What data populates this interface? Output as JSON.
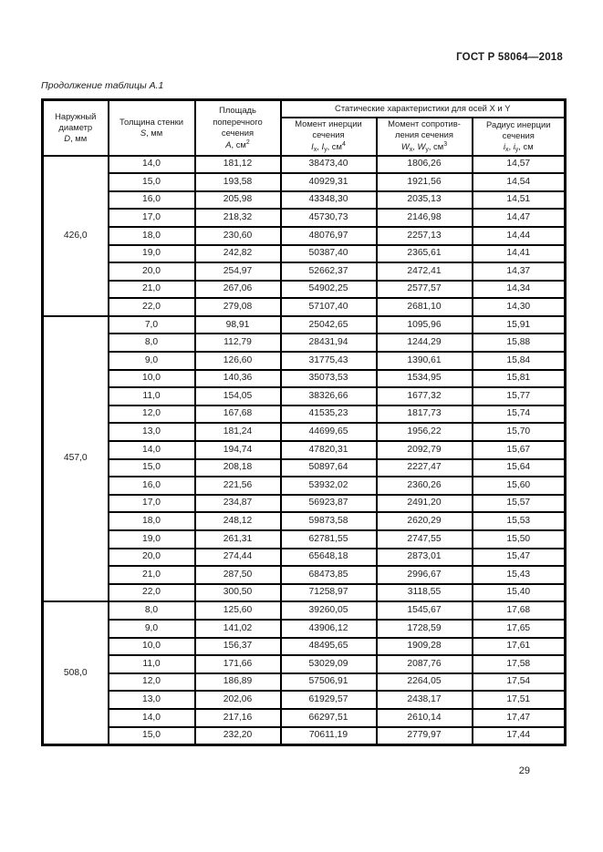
{
  "page": {
    "doc_number": "ГОСТ Р 58064—2018",
    "caption": "Продолжение таблицы А.1",
    "page_number": "29"
  },
  "table": {
    "header": {
      "col1": {
        "title": "Наружный диаметр",
        "var": "D",
        "unit": ", мм"
      },
      "col2": {
        "title": "Толщина стенки",
        "var": "S",
        "unit": ", мм"
      },
      "col3": {
        "title": "Площадь поперечного сечения",
        "var": "A",
        "unit": ", см",
        "sup": "2"
      },
      "span": "Статические характеристики  для осей X и Y",
      "col4": {
        "title": "Момент инерции сечения",
        "v1": "I",
        "s1": "x",
        "sep": ", ",
        "v2": "I",
        "s2": "y",
        "unit": ", см",
        "sup": "4"
      },
      "col5": {
        "title": "Момент сопротив-ления сечения",
        "v1": "W",
        "s1": "x",
        "sep": ", ",
        "v2": "W",
        "s2": "y",
        "unit": ", см",
        "sup": "3"
      },
      "col6": {
        "title": "Радиус инерции сечения",
        "v1": "i",
        "s1": "x",
        "sep": ", ",
        "v2": "i",
        "s2": "y",
        "unit": ", см"
      }
    },
    "groups": [
      {
        "diameter": "426,0",
        "rows": [
          [
            "14,0",
            "181,12",
            "38473,40",
            "1806,26",
            "14,57"
          ],
          [
            "15,0",
            "193,58",
            "40929,31",
            "1921,56",
            "14,54"
          ],
          [
            "16,0",
            "205,98",
            "43348,30",
            "2035,13",
            "14,51"
          ],
          [
            "17,0",
            "218,32",
            "45730,73",
            "2146,98",
            "14,47"
          ],
          [
            "18,0",
            "230,60",
            "48076,97",
            "2257,13",
            "14,44"
          ],
          [
            "19,0",
            "242,82",
            "50387,40",
            "2365,61",
            "14,41"
          ],
          [
            "20,0",
            "254,97",
            "52662,37",
            "2472,41",
            "14,37"
          ],
          [
            "21,0",
            "267,06",
            "54902,25",
            "2577,57",
            "14,34"
          ],
          [
            "22,0",
            "279,08",
            "57107,40",
            "2681,10",
            "14,30"
          ]
        ]
      },
      {
        "diameter": "457,0",
        "rows": [
          [
            "7,0",
            "98,91",
            "25042,65",
            "1095,96",
            "15,91"
          ],
          [
            "8,0",
            "112,79",
            "28431,94",
            "1244,29",
            "15,88"
          ],
          [
            "9,0",
            "126,60",
            "31775,43",
            "1390,61",
            "15,84"
          ],
          [
            "10,0",
            "140,36",
            "35073,53",
            "1534,95",
            "15,81"
          ],
          [
            "11,0",
            "154,05",
            "38326,66",
            "1677,32",
            "15,77"
          ],
          [
            "12,0",
            "167,68",
            "41535,23",
            "1817,73",
            "15,74"
          ],
          [
            "13,0",
            "181,24",
            "44699,65",
            "1956,22",
            "15,70"
          ],
          [
            "14,0",
            "194,74",
            "47820,31",
            "2092,79",
            "15,67"
          ],
          [
            "15,0",
            "208,18",
            "50897,64",
            "2227,47",
            "15,64"
          ],
          [
            "16,0",
            "221,56",
            "53932,02",
            "2360,26",
            "15,60"
          ],
          [
            "17,0",
            "234,87",
            "56923,87",
            "2491,20",
            "15,57"
          ],
          [
            "18,0",
            "248,12",
            "59873,58",
            "2620,29",
            "15,53"
          ],
          [
            "19,0",
            "261,31",
            "62781,55",
            "2747,55",
            "15,50"
          ],
          [
            "20,0",
            "274,44",
            "65648,18",
            "2873,01",
            "15,47"
          ],
          [
            "21,0",
            "287,50",
            "68473,85",
            "2996,67",
            "15,43"
          ],
          [
            "22,0",
            "300,50",
            "71258,97",
            "3118,55",
            "15,40"
          ]
        ]
      },
      {
        "diameter": "508,0",
        "rows": [
          [
            "8,0",
            "125,60",
            "39260,05",
            "1545,67",
            "17,68"
          ],
          [
            "9,0",
            "141,02",
            "43906,12",
            "1728,59",
            "17,65"
          ],
          [
            "10,0",
            "156,37",
            "48495,65",
            "1909,28",
            "17,61"
          ],
          [
            "11,0",
            "171,66",
            "53029,09",
            "2087,76",
            "17,58"
          ],
          [
            "12,0",
            "186,89",
            "57506,91",
            "2264,05",
            "17,54"
          ],
          [
            "13,0",
            "202,06",
            "61929,57",
            "2438,17",
            "17,51"
          ],
          [
            "14,0",
            "217,16",
            "66297,51",
            "2610,14",
            "17,47"
          ],
          [
            "15,0",
            "232,20",
            "70611,19",
            "2779,97",
            "17,44"
          ]
        ]
      }
    ]
  }
}
